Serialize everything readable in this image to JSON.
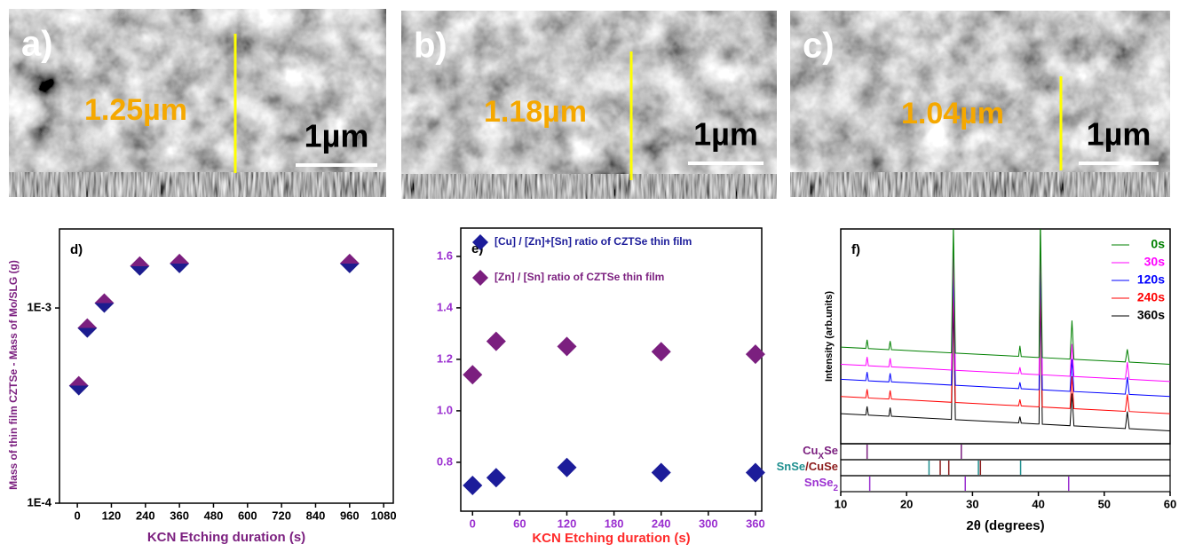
{
  "images": [
    {
      "label": "a)",
      "thickness": "1.25µm",
      "scale_bar": "1µm"
    },
    {
      "label": "b)",
      "thickness": "1.18µm",
      "scale_bar": "1µm"
    },
    {
      "label": "c)",
      "thickness": "1.04µm",
      "scale_bar": "1µm"
    }
  ],
  "chart_data": [
    {
      "type": "scatter",
      "panel_label": "d)",
      "y_label": "Mass of thin film CZTSe -  Mass of Mo/SLG (g)",
      "x_label": "KCN Etching duration (s)",
      "label_color": "#7b1f7f",
      "x": [
        5,
        35,
        95,
        220,
        360,
        960
      ],
      "values": [
        0.0004,
        0.00079,
        0.00106,
        0.00164,
        0.00169,
        0.00169
      ],
      "colors": {
        "top": "#7b1f7f",
        "bottom": "#1c1c8f"
      },
      "log_y": true,
      "xlim": [
        -63,
        1114
      ],
      "ylim": [
        0.0001,
        0.00254
      ],
      "xticks": [
        0,
        120,
        240,
        360,
        480,
        600,
        720,
        840,
        960,
        1080
      ],
      "yticks": [
        {
          "value": 0.0001,
          "label": "1E-4"
        },
        {
          "value": 0.001,
          "label": "1E-3"
        }
      ]
    },
    {
      "type": "scatter",
      "panel_label": "e)",
      "x_label": "KCN Etching duration (s)",
      "label_color": "#ff2a2a",
      "tick_color": "#9b30d0",
      "x": [
        0,
        30,
        120,
        240,
        360
      ],
      "series": [
        {
          "name": "[Cu] / [Zn]+[Sn] ratio of CZTSe thin film",
          "color": "#1c1c9a",
          "values": [
            0.71,
            0.74,
            0.78,
            0.76,
            0.76
          ]
        },
        {
          "name": "[Zn] / [Sn] ratio of CZTSe thin film",
          "color": "#7b1f7f",
          "values": [
            1.14,
            1.27,
            1.25,
            1.23,
            1.22
          ]
        }
      ],
      "legend": "upper left",
      "xlim": [
        -15,
        368
      ],
      "ylim": [
        0.61,
        1.71
      ],
      "xticks": [
        0,
        60,
        120,
        180,
        240,
        300,
        360
      ],
      "yticks": [
        0.8,
        {
          "value": 1,
          "label": "1.0"
        },
        1.2,
        1.4,
        1.6
      ]
    },
    {
      "type": "line",
      "panel_label": "f)",
      "y_label": "Intensity (arb.units)",
      "x_label": "2θ (degrees)",
      "x": [
        10,
        13.8,
        14,
        14.2,
        17.3,
        17.5,
        17.7,
        22,
        26.8,
        27.1,
        27.4,
        30,
        35,
        37,
        37.2,
        37.4,
        39.8,
        40.1,
        40.3,
        40.6,
        44.8,
        45.1,
        45.4,
        50,
        53.2,
        53.5,
        53.8,
        60
      ],
      "series": [
        {
          "name": "360s",
          "color": "#000000",
          "values": [
            14,
            13.4,
            17.4,
            13.3,
            12.8,
            16.8,
            12.8,
            12.1,
            11.3,
            66.3,
            11.2,
            10.8,
            10,
            9.7,
            12.6,
            9.6,
            9.2,
            9.2,
            74.2,
            9.1,
            8.4,
            23.4,
            8.3,
            7.6,
            7.1,
            15,
            7,
            6
          ]
        },
        {
          "name": "240s",
          "color": "#ff0000",
          "values": [
            22,
            21.4,
            25.4,
            21.3,
            20.8,
            24.8,
            20.8,
            20.1,
            19.3,
            74.3,
            19.2,
            18.8,
            18,
            17.7,
            20.6,
            17.6,
            17.2,
            17.2,
            82.2,
            17.1,
            16.4,
            31.4,
            16.3,
            15.6,
            15.1,
            23,
            15,
            14
          ]
        },
        {
          "name": "120s",
          "color": "#0000ff",
          "values": [
            30,
            29.4,
            33.4,
            29.3,
            28.8,
            32.8,
            28.8,
            28.1,
            27.3,
            82.3,
            27.2,
            26.8,
            26,
            25.7,
            28.6,
            25.6,
            25.2,
            25.2,
            90.2,
            25.1,
            24.4,
            39.4,
            24.3,
            23.6,
            23.1,
            31,
            23,
            22
          ]
        },
        {
          "name": "30s",
          "color": "#ff00ff",
          "values": [
            37,
            36.4,
            40.4,
            36.3,
            35.8,
            39.8,
            35.8,
            35.1,
            34.3,
            89.3,
            34.2,
            33.8,
            33,
            32.7,
            35.6,
            32.6,
            32.2,
            32.2,
            97.2,
            32.1,
            31.4,
            46.4,
            31.3,
            30.6,
            30.1,
            38,
            30,
            29
          ]
        },
        {
          "name": "0s",
          "color": "#008000",
          "values": [
            45,
            44.4,
            48.4,
            44.3,
            43.8,
            47.8,
            43.8,
            43.1,
            42.3,
            102.3,
            42.2,
            41.8,
            41,
            40.7,
            45.6,
            40.6,
            40.2,
            40.2,
            105.2,
            40.1,
            39.4,
            57.4,
            39.3,
            38.6,
            38.1,
            44,
            38,
            37
          ]
        }
      ],
      "legend": "upper right",
      "xlim": [
        10,
        60
      ],
      "ylim": [
        0,
        100
      ],
      "xticks": [
        10,
        20,
        30,
        40,
        50,
        60
      ],
      "references": [
        {
          "label": [
            {
              "text": "Cu",
              "color": "#7b1f7f"
            },
            {
              "text": "X",
              "color": "#7b1f7f",
              "sub": true
            },
            {
              "text": "Se",
              "color": "#7b1f7f"
            }
          ],
          "groups": [
            {
              "color": "#7b1f7f",
              "positions": [
                14,
                28.3
              ]
            }
          ]
        },
        {
          "label": [
            {
              "text": "SnSe",
              "color": "#1f8f8f"
            },
            {
              "text": "/CuSe",
              "color": "#8b1a1a"
            }
          ],
          "groups": [
            {
              "color": "#1f8f8f",
              "positions": [
                23.4,
                30.9,
                37.3
              ]
            },
            {
              "color": "#8b1a1a",
              "positions": [
                25.1,
                26.4,
                31.2
              ]
            }
          ]
        },
        {
          "label": [
            {
              "text": "SnSe",
              "color": "#9b30d0"
            },
            {
              "text": "2",
              "color": "#9b30d0",
              "sub": true
            }
          ],
          "groups": [
            {
              "color": "#9b30d0",
              "positions": [
                14.4,
                28.9,
                44.6
              ]
            }
          ]
        }
      ]
    }
  ]
}
